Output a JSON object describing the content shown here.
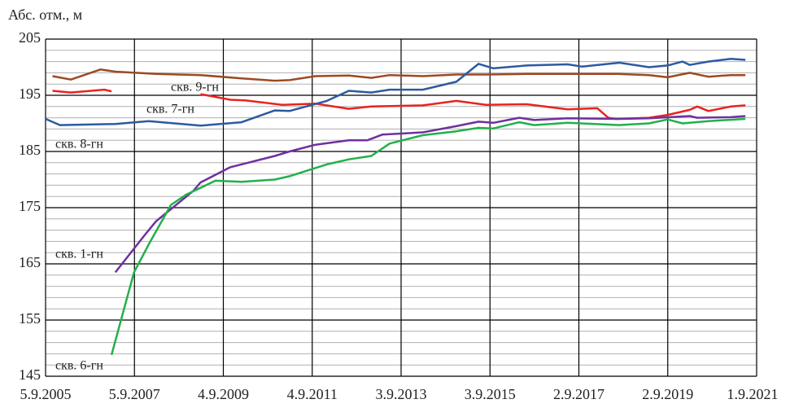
{
  "chart_data": {
    "type": "line",
    "ylabel": "Абс. отм., м",
    "ylim": [
      145,
      205
    ],
    "yticks": [
      145,
      155,
      165,
      175,
      185,
      195,
      205
    ],
    "minor_yticks": [
      147,
      149,
      151,
      153,
      157,
      159,
      161,
      163,
      167,
      169,
      171,
      173,
      177,
      179,
      181,
      183,
      187,
      189,
      191,
      193,
      197,
      199,
      201,
      203
    ],
    "xlim": [
      "2005-09-05",
      "2021-09-01"
    ],
    "xticks": [
      {
        "value": "2005-09-05",
        "label": "5.9.2005"
      },
      {
        "value": "2007-09-05",
        "label": "5.9.2007"
      },
      {
        "value": "2009-09-04",
        "label": "4.9.2009"
      },
      {
        "value": "2011-09-04",
        "label": "4.9.2011"
      },
      {
        "value": "2013-09-03",
        "label": "3.9.2013"
      },
      {
        "value": "2015-09-03",
        "label": "3.9.2015"
      },
      {
        "value": "2017-09-02",
        "label": "2.9.2017"
      },
      {
        "value": "2019-09-02",
        "label": "2.9.2019"
      },
      {
        "value": "2021-09-01",
        "label": "1.9.2021"
      }
    ],
    "grid": true,
    "series": [
      {
        "name": "скв. 9-гн",
        "color": "#9c4a22",
        "x": [
          "2005-11-01",
          "2006-04-01",
          "2006-12-01",
          "2007-04-01",
          "2008-03-01",
          "2009-03-01",
          "2010-02-01",
          "2010-11-01",
          "2011-03-01",
          "2011-10-01",
          "2012-07-01",
          "2013-01-01",
          "2013-06-01",
          "2014-03-01",
          "2014-12-01",
          "2015-08-01",
          "2016-07-01",
          "2017-06-01",
          "2018-08-01",
          "2019-04-01",
          "2019-09-01",
          "2020-03-01",
          "2020-08-01",
          "2021-02-01",
          "2021-06-01"
        ],
        "values": [
          198.4,
          197.8,
          199.6,
          199.2,
          198.8,
          198.6,
          198.0,
          197.6,
          197.7,
          198.4,
          198.5,
          198.1,
          198.6,
          198.4,
          198.7,
          198.7,
          198.8,
          198.8,
          198.8,
          198.6,
          198.2,
          199.0,
          198.3,
          198.6,
          198.6
        ]
      },
      {
        "name": "скв. 7-гн",
        "color": "#e8231f",
        "x": [
          "2005-11-01",
          "2006-04-01",
          "2007-01-01",
          "2007-03-01",
          "2008-01-01",
          "2009-03-01",
          "2009-11-01",
          "2010-03-01",
          "2011-01-01",
          "2011-10-01",
          "2012-07-01",
          "2013-01-01",
          "2014-03-01",
          "2014-12-01",
          "2015-08-01",
          "2016-07-01",
          "2017-06-01",
          "2018-02-01",
          "2018-05-01",
          "2018-07-01",
          "2019-04-01",
          "2019-09-01",
          "2020-03-01",
          "2020-05-01",
          "2020-08-01",
          "2021-02-01",
          "2021-06-01"
        ],
        "values": [
          195.8,
          195.5,
          196.0,
          195.7,
          null,
          195.2,
          194.2,
          194.1,
          193.3,
          193.5,
          192.6,
          193.0,
          193.2,
          194.0,
          193.3,
          193.4,
          192.5,
          192.7,
          191.0,
          190.8,
          191.0,
          191.5,
          192.4,
          193.0,
          192.2,
          193.0,
          193.2
        ]
      },
      {
        "name": "скв. 8-гн",
        "color": "#2c5aa0",
        "x": [
          "2005-09-05",
          "2006-01-01",
          "2007-04-01",
          "2008-01-01",
          "2009-03-01",
          "2010-02-01",
          "2010-11-01",
          "2011-03-01",
          "2012-01-01",
          "2012-07-01",
          "2013-01-01",
          "2013-06-01",
          "2014-03-01",
          "2014-12-01",
          "2015-06-01",
          "2015-10-01",
          "2016-07-01",
          "2017-06-01",
          "2017-10-01",
          "2018-08-01",
          "2019-04-01",
          "2019-09-01",
          "2020-01-01",
          "2020-03-01",
          "2020-08-01",
          "2021-02-01",
          "2021-06-01"
        ],
        "values": [
          190.8,
          189.7,
          189.9,
          190.4,
          189.6,
          190.2,
          192.3,
          192.2,
          194.0,
          195.8,
          195.5,
          196.0,
          196.0,
          197.4,
          200.6,
          199.8,
          200.3,
          200.5,
          200.1,
          200.8,
          200.0,
          200.3,
          201.0,
          200.4,
          201.0,
          201.5,
          201.3
        ]
      },
      {
        "name": "скв. 1-гн",
        "color": "#7030a0",
        "x": [
          "2007-04-01",
          "2007-12-01",
          "2008-03-01",
          "2009-01-01",
          "2009-03-01",
          "2009-11-01",
          "2010-11-01",
          "2011-03-01",
          "2011-10-01",
          "2012-07-01",
          "2012-12-01",
          "2013-04-01",
          "2014-03-01",
          "2014-12-01",
          "2015-06-01",
          "2015-10-01",
          "2016-05-01",
          "2016-09-01",
          "2017-06-01",
          "2018-08-01",
          "2019-04-01",
          "2020-03-01",
          "2020-05-01",
          "2021-02-01",
          "2021-06-01"
        ],
        "values": [
          163.5,
          170.2,
          172.6,
          178.0,
          179.5,
          182.2,
          184.2,
          185.0,
          186.2,
          187.0,
          187.0,
          188.0,
          188.4,
          189.5,
          190.3,
          190.1,
          191.0,
          190.6,
          190.9,
          190.8,
          190.9,
          191.3,
          191.0,
          191.1,
          191.3
        ]
      },
      {
        "name": "скв. 6-гн",
        "color": "#22b04a",
        "x": [
          "2007-03-01",
          "2007-09-01",
          "2008-01-01",
          "2008-07-01",
          "2008-11-01",
          "2009-07-01",
          "2010-02-01",
          "2010-11-01",
          "2011-03-01",
          "2012-01-01",
          "2012-07-01",
          "2013-01-01",
          "2013-06-01",
          "2014-03-01",
          "2014-12-01",
          "2015-06-01",
          "2015-10-01",
          "2016-05-01",
          "2016-09-01",
          "2017-06-01",
          "2018-08-01",
          "2019-04-01",
          "2019-09-01",
          "2020-01-01",
          "2020-08-01",
          "2021-06-01"
        ],
        "values": [
          148.8,
          163.5,
          168.5,
          175.5,
          177.3,
          179.8,
          179.6,
          180.0,
          180.6,
          182.7,
          183.6,
          184.2,
          186.4,
          187.9,
          188.6,
          189.2,
          189.1,
          190.2,
          189.7,
          190.1,
          189.7,
          190.0,
          190.7,
          190.0,
          190.4,
          190.8
        ]
      }
    ]
  }
}
